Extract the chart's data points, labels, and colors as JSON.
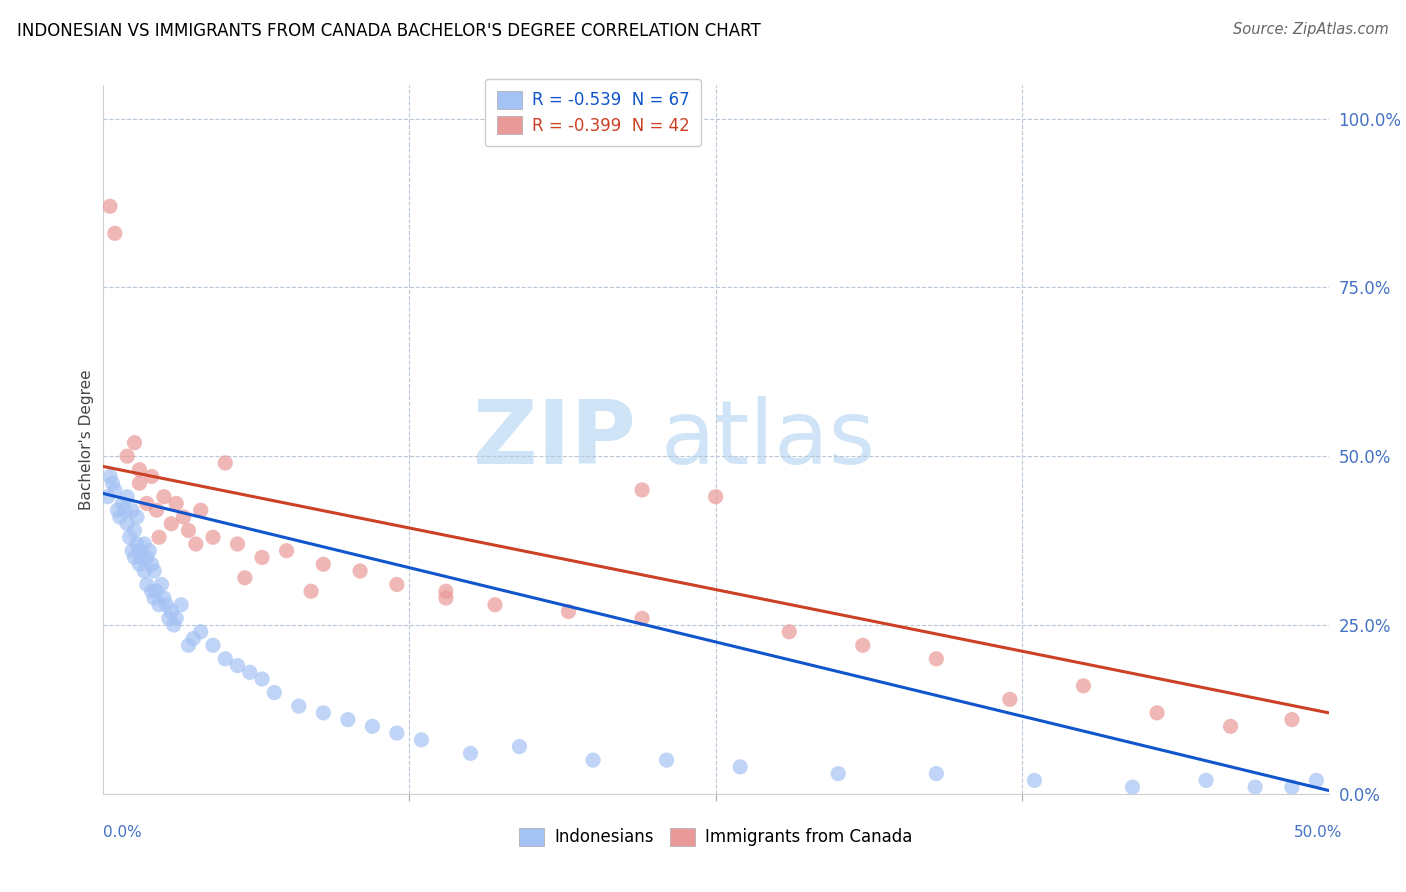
{
  "title": "INDONESIAN VS IMMIGRANTS FROM CANADA BACHELOR'S DEGREE CORRELATION CHART",
  "source": "Source: ZipAtlas.com",
  "ylabel": "Bachelor's Degree",
  "legend_r1": "R = -0.539  N = 67",
  "legend_r2": "R = -0.399  N = 42",
  "legend_label1": "Indonesians",
  "legend_label2": "Immigrants from Canada",
  "blue_scatter_color": "#a4c2f4",
  "pink_scatter_color": "#ea9999",
  "blue_line_color": "#1155cc",
  "pink_line_color": "#cc4125",
  "watermark_color": "#d0e4f7",
  "xlim": [
    0,
    50
  ],
  "ylim": [
    0,
    105
  ],
  "ytick_vals": [
    0,
    25,
    50,
    75,
    100
  ],
  "indonesian_x": [
    0.2,
    0.3,
    0.4,
    0.5,
    0.6,
    0.7,
    0.8,
    0.9,
    1.0,
    1.0,
    1.1,
    1.2,
    1.2,
    1.3,
    1.3,
    1.4,
    1.4,
    1.5,
    1.5,
    1.6,
    1.7,
    1.7,
    1.8,
    1.8,
    1.9,
    2.0,
    2.0,
    2.1,
    2.1,
    2.2,
    2.3,
    2.4,
    2.5,
    2.6,
    2.7,
    2.8,
    2.9,
    3.0,
    3.2,
    3.5,
    3.7,
    4.0,
    4.5,
    5.0,
    5.5,
    6.0,
    6.5,
    7.0,
    8.0,
    9.0,
    10.0,
    11.0,
    12.0,
    13.0,
    15.0,
    17.0,
    20.0,
    23.0,
    26.0,
    30.0,
    34.0,
    38.0,
    42.0,
    45.0,
    47.0,
    48.5,
    49.5
  ],
  "indonesian_y": [
    44,
    47,
    46,
    45,
    42,
    41,
    43,
    42,
    44,
    40,
    38,
    36,
    42,
    35,
    39,
    37,
    41,
    36,
    34,
    35,
    33,
    37,
    31,
    35,
    36,
    30,
    34,
    29,
    33,
    30,
    28,
    31,
    29,
    28,
    26,
    27,
    25,
    26,
    28,
    22,
    23,
    24,
    22,
    20,
    19,
    18,
    17,
    15,
    13,
    12,
    11,
    10,
    9,
    8,
    6,
    7,
    5,
    5,
    4,
    3,
    3,
    2,
    1,
    2,
    1,
    1,
    2
  ],
  "canada_x": [
    0.3,
    0.5,
    1.0,
    1.3,
    1.5,
    1.8,
    2.0,
    2.2,
    2.5,
    2.8,
    3.0,
    3.3,
    3.5,
    4.0,
    4.5,
    5.0,
    5.5,
    6.5,
    7.5,
    9.0,
    10.5,
    12.0,
    14.0,
    16.0,
    19.0,
    22.0,
    25.0,
    28.0,
    31.0,
    34.0,
    37.0,
    40.0,
    43.0,
    46.0,
    48.5,
    1.5,
    2.3,
    3.8,
    5.8,
    8.5,
    14.0,
    22.0
  ],
  "canada_y": [
    87,
    83,
    50,
    52,
    48,
    43,
    47,
    42,
    44,
    40,
    43,
    41,
    39,
    42,
    38,
    49,
    37,
    35,
    36,
    34,
    33,
    31,
    30,
    28,
    27,
    26,
    44,
    24,
    22,
    20,
    14,
    16,
    12,
    10,
    11,
    46,
    38,
    37,
    32,
    30,
    29,
    45
  ],
  "blue_line_intercept": 44.5,
  "blue_line_slope": -0.88,
  "pink_line_intercept": 48.5,
  "pink_line_slope": -0.73
}
